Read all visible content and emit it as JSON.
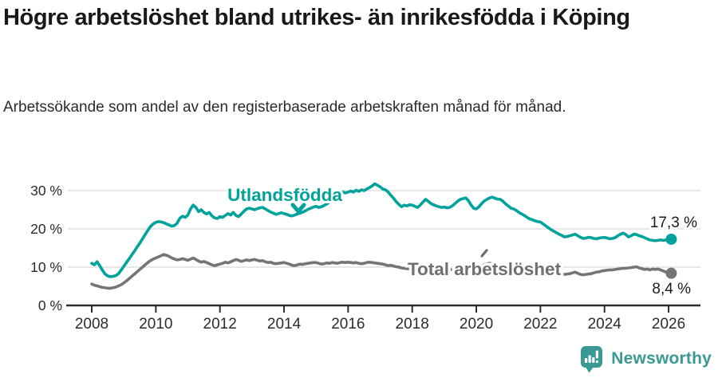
{
  "header": {
    "title": "Högre arbetslöshet bland utrikes- än inrikesfödda i Köping",
    "subtitle": "Arbetssökande som andel av den registerbaserade arbetskraften månad för månad."
  },
  "chart_data": {
    "type": "line",
    "unit": "%",
    "x_start_year": 2008,
    "points_per_year": 12,
    "ylim": [
      0,
      33
    ],
    "yticks": [
      0,
      10,
      20,
      30
    ],
    "ytick_labels": [
      "0 %",
      "10 %",
      "20 %",
      "30 %"
    ],
    "xticks": [
      2008,
      2010,
      2012,
      2014,
      2016,
      2018,
      2020,
      2022,
      2024,
      2026
    ],
    "grid": "horizontal",
    "legend_position": "inline-labels",
    "colors": {
      "grid": "#d9d9d9",
      "axis": "#2b2b2b",
      "tick_label": "#2b2b2b",
      "annotation_text": "#1a1a1a"
    },
    "series": [
      {
        "name": "Utlandsfödda",
        "color": "#00a39b",
        "end_label": "17,3 %",
        "end_value": 17.3,
        "values": [
          11.0,
          10.6,
          11.4,
          10.4,
          9.2,
          8.2,
          7.7,
          7.5,
          7.6,
          7.8,
          8.3,
          9.2,
          10.2,
          11.2,
          12.2,
          13.2,
          14.2,
          15.3,
          16.3,
          17.4,
          18.5,
          19.6,
          20.6,
          21.3,
          21.7,
          21.9,
          21.8,
          21.6,
          21.3,
          21.0,
          20.7,
          20.9,
          21.5,
          22.8,
          23.3,
          23.0,
          23.6,
          25.2,
          26.2,
          25.6,
          24.5,
          25.0,
          24.3,
          23.9,
          24.3,
          23.4,
          22.9,
          22.7,
          23.2,
          23.0,
          23.5,
          24.0,
          23.6,
          24.3,
          23.5,
          23.2,
          23.9,
          24.6,
          25.2,
          25.4,
          25.2,
          25.0,
          25.3,
          25.5,
          25.6,
          25.2,
          24.8,
          24.4,
          24.1,
          23.8,
          24.0,
          24.2,
          24.0,
          23.8,
          23.5,
          23.4,
          23.6,
          23.9,
          24.1,
          24.4,
          24.7,
          25.1,
          25.4,
          25.7,
          25.9,
          25.6,
          25.8,
          26.1,
          26.5,
          27.0,
          27.6,
          28.2,
          28.8,
          29.3,
          29.6,
          29.4,
          29.6,
          29.9,
          29.6,
          30.1,
          29.8,
          30.2,
          30.0,
          30.4,
          30.8,
          31.2,
          31.8,
          31.4,
          31.0,
          30.4,
          30.2,
          29.6,
          28.8,
          28.0,
          27.1,
          26.4,
          25.8,
          26.2,
          26.0,
          26.3,
          26.2,
          25.9,
          25.6,
          26.2,
          27.0,
          27.7,
          27.2,
          26.6,
          26.3,
          26.0,
          25.8,
          25.6,
          25.7,
          25.5,
          25.6,
          26.0,
          26.6,
          27.2,
          27.7,
          27.9,
          28.1,
          27.4,
          26.3,
          25.4,
          25.2,
          25.8,
          26.6,
          27.3,
          27.7,
          28.1,
          28.3,
          28.0,
          27.8,
          27.7,
          27.2,
          26.5,
          26.0,
          25.4,
          25.2,
          24.8,
          24.3,
          23.9,
          23.5,
          23.0,
          22.6,
          22.4,
          22.1,
          21.9,
          21.8,
          21.3,
          20.8,
          20.3,
          19.8,
          19.4,
          19.0,
          18.6,
          18.3,
          17.9,
          18.0,
          18.2,
          18.4,
          18.6,
          18.2,
          17.8,
          17.5,
          17.6,
          17.8,
          17.7,
          17.5,
          17.4,
          17.6,
          17.7,
          17.8,
          17.6,
          17.4,
          17.5,
          17.7,
          18.2,
          18.6,
          18.9,
          18.5,
          17.9,
          18.2,
          18.6,
          18.5,
          18.2,
          18.0,
          17.7,
          17.4,
          17.1,
          17.0,
          16.9,
          17.0,
          17.1,
          17.0,
          17.1,
          17.2,
          17.3
        ]
      },
      {
        "name": "Total arbetslöshet",
        "color": "#757575",
        "label_color": "#6f6f6f",
        "end_label": "8,4 %",
        "end_value": 8.4,
        "values": [
          5.6,
          5.3,
          5.1,
          4.9,
          4.7,
          4.6,
          4.5,
          4.5,
          4.6,
          4.8,
          5.1,
          5.4,
          5.9,
          6.4,
          7.0,
          7.6,
          8.2,
          8.8,
          9.4,
          10.0,
          10.6,
          11.2,
          11.7,
          12.1,
          12.4,
          12.7,
          13.0,
          13.3,
          13.1,
          12.8,
          12.4,
          12.1,
          11.9,
          12.0,
          12.2,
          12.0,
          11.8,
          12.1,
          12.4,
          12.0,
          11.6,
          11.3,
          11.5,
          11.2,
          10.9,
          10.6,
          10.4,
          10.6,
          10.8,
          11.0,
          11.3,
          11.1,
          11.4,
          11.7,
          12.0,
          11.8,
          11.5,
          11.7,
          11.9,
          11.7,
          11.9,
          12.0,
          11.8,
          11.6,
          11.7,
          11.4,
          11.2,
          11.3,
          11.0,
          10.9,
          11.0,
          11.1,
          11.2,
          11.0,
          10.8,
          10.5,
          10.4,
          10.6,
          10.8,
          10.7,
          10.9,
          11.0,
          11.1,
          11.2,
          11.2,
          11.0,
          10.8,
          10.9,
          11.1,
          11.0,
          11.2,
          11.1,
          11.0,
          11.2,
          11.3,
          11.2,
          11.3,
          11.2,
          11.1,
          11.2,
          11.0,
          10.9,
          11.0,
          11.2,
          11.3,
          11.2,
          11.1,
          11.0,
          10.9,
          10.8,
          10.6,
          10.4,
          10.5,
          10.3,
          10.1,
          10.0,
          9.8,
          9.7,
          9.6,
          9.5,
          9.6,
          9.7,
          9.8,
          10.0,
          10.2,
          10.1,
          9.9,
          9.8,
          9.6,
          9.5,
          9.4,
          9.3,
          9.4,
          9.5,
          9.4,
          9.3,
          9.2,
          9.3,
          9.5,
          9.4,
          9.3,
          9.2,
          9.3,
          9.5,
          9.7,
          9.9,
          10.3,
          10.7,
          10.9,
          11.0,
          10.9,
          10.7,
          10.5,
          10.3,
          10.1,
          9.9,
          9.8,
          9.6,
          9.5,
          9.3,
          9.2,
          9.0,
          8.9,
          8.8,
          8.7,
          8.6,
          8.5,
          8.5,
          8.4,
          8.3,
          8.2,
          8.2,
          8.1,
          8.1,
          8.0,
          8.1,
          8.2,
          8.1,
          8.2,
          8.3,
          8.5,
          8.7,
          8.4,
          8.1,
          8.0,
          8.1,
          8.2,
          8.3,
          8.5,
          8.7,
          8.8,
          9.0,
          9.1,
          9.2,
          9.3,
          9.3,
          9.4,
          9.5,
          9.6,
          9.7,
          9.7,
          9.8,
          9.9,
          10.0,
          10.1,
          9.8,
          9.6,
          9.4,
          9.5,
          9.3,
          9.5,
          9.4,
          9.5,
          9.3,
          9.0,
          8.7,
          8.5,
          8.4
        ]
      }
    ]
  },
  "footer": {
    "brand": "Newsworthy",
    "brand_color": "#3a9a93"
  }
}
